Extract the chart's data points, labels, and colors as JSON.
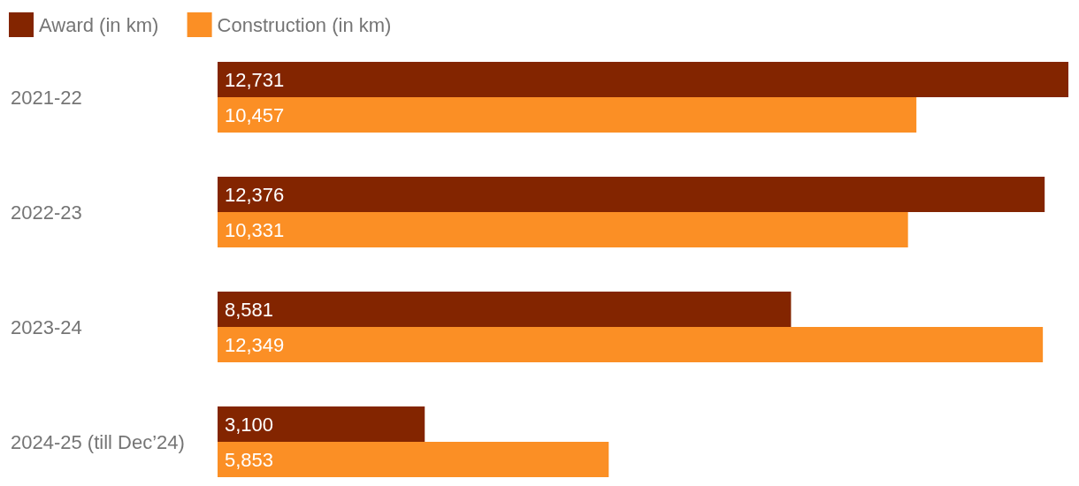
{
  "chart_data": {
    "type": "bar",
    "orientation": "horizontal",
    "categories": [
      "2021-22",
      "2022-23",
      "2023-24",
      "2024-25 (till Dec’24)"
    ],
    "series": [
      {
        "name": "Award (in km)",
        "color": "#832500",
        "values": [
          12731,
          12376,
          8581,
          3100
        ],
        "value_labels": [
          "12,731",
          "12,376",
          "8,581",
          "3,100"
        ]
      },
      {
        "name": "Construction (in km)",
        "color": "#fb8f25",
        "values": [
          10457,
          10331,
          12349,
          5853
        ],
        "value_labels": [
          "10,457",
          "10,331",
          "12,349",
          "5,853"
        ]
      }
    ],
    "legend": "top left"
  }
}
